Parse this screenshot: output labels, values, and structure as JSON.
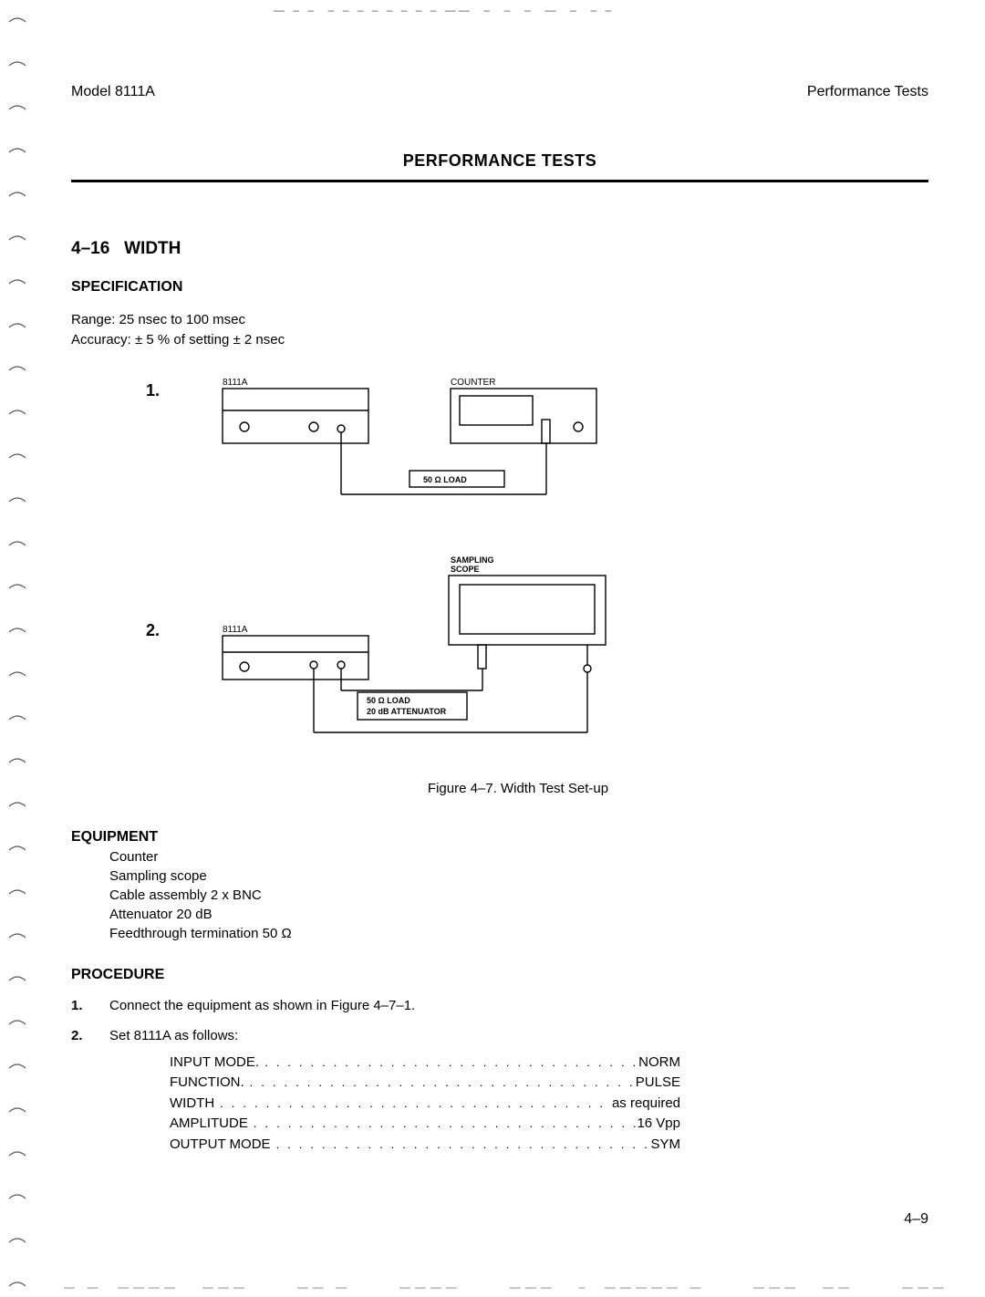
{
  "header": {
    "left": "Model 8111A",
    "right": "Performance Tests"
  },
  "title": "PERFORMANCE TESTS",
  "section": {
    "number": "4–16",
    "label": "WIDTH"
  },
  "spec": {
    "heading": "SPECIFICATION",
    "range": "Range: 25 nsec to 100 msec",
    "accuracy": "Accuracy: ± 5 % of setting ± 2 nsec"
  },
  "diagram1": {
    "num": "1.",
    "device_label": "8111A",
    "counter_label": "COUNTER",
    "load_label": "50 Ω LOAD"
  },
  "diagram2": {
    "num": "2.",
    "device_label": "8111A",
    "scope_label_a": "SAMPLING",
    "scope_label_b": "SCOPE",
    "load_label_a": "50 Ω LOAD",
    "load_label_b": "20 dB ATTENUATOR"
  },
  "figure_caption": "Figure 4–7. Width Test Set-up",
  "equipment": {
    "heading": "EQUIPMENT",
    "items": [
      "Counter",
      "Sampling scope",
      "Cable assembly 2 x BNC",
      "Attenuator 20 dB",
      "Feedthrough termination 50 Ω"
    ]
  },
  "procedure": {
    "heading": "PROCEDURE",
    "step1": {
      "n": "1.",
      "text": "Connect the equipment as shown in Figure 4–7–1."
    },
    "step2": {
      "n": "2.",
      "text": "Set 8111A as follows:"
    }
  },
  "settings": [
    {
      "label": "INPUT MODE.",
      "value": "NORM"
    },
    {
      "label": "FUNCTION.",
      "value": "PULSE"
    },
    {
      "label": "WIDTH",
      "value": "as required"
    },
    {
      "label": "AMPLITUDE",
      "value": "16 Vpp"
    },
    {
      "label": "OUTPUT MODE",
      "value": "SYM"
    }
  ],
  "page_number": "4–9",
  "binding_count": 30
}
